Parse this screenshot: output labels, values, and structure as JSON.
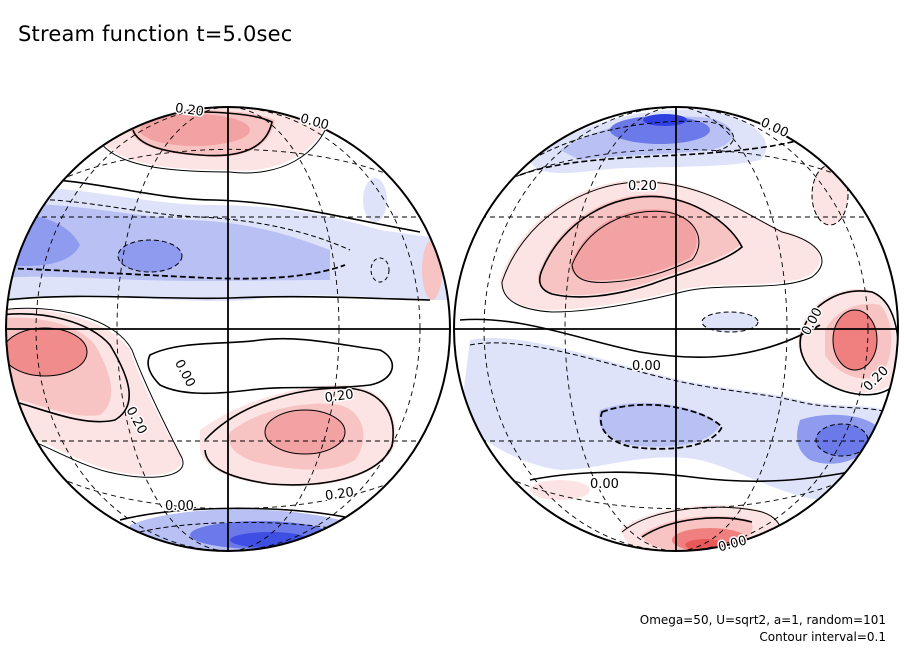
{
  "figure": {
    "title": "Stream function t=5.0sec",
    "note_params": "Omega=50, U=sqrt2, a=1, random=101",
    "note_interval": "Contour interval=0.1"
  },
  "colors": {
    "positive": "#f08080",
    "negative": "#4050e8",
    "neutral": "#ffffff",
    "line": "#000000"
  },
  "contour_labels": {
    "left": [
      "0.20",
      "0.00",
      "0.00",
      "0.20",
      "0.20",
      "0.00",
      "0.20"
    ],
    "right": [
      "0.00",
      "0.20",
      "0.00",
      "0.00",
      "0.20",
      "0.00",
      "0.00"
    ]
  }
}
